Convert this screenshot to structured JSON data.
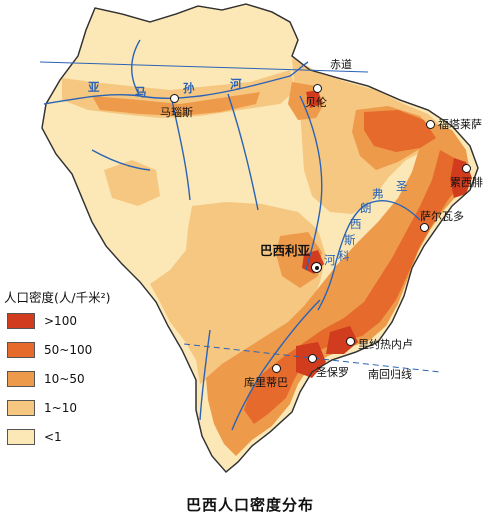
{
  "colors": {
    "gt100": "#d13c1e",
    "d50_100": "#e56a2c",
    "d10_50": "#ee9a4b",
    "d1_10": "#f6c780",
    "lt1": "#fbe8b6",
    "river": "#2a63b6",
    "line": "#2a63b6"
  },
  "legend": {
    "title": "人口密度(人/千米²)",
    "items": [
      {
        "label": ">100",
        "color": "#d13c1e"
      },
      {
        "label": "50~100",
        "color": "#e56a2c"
      },
      {
        "label": "10~50",
        "color": "#ee9a4b"
      },
      {
        "label": "1~10",
        "color": "#f6c780"
      },
      {
        "label": "<1",
        "color": "#fbe8b6"
      }
    ]
  },
  "lines": {
    "equator": "赤道",
    "tropic": "南回归线"
  },
  "rivers": {
    "amazon": [
      "亚",
      "马",
      "孙",
      "河"
    ],
    "sao_francisco": [
      "圣",
      "弗",
      "朗",
      "西",
      "斯",
      "科",
      "河"
    ]
  },
  "cities": {
    "manaus": "马瑙斯",
    "belem": "贝伦",
    "fortaleza": "福塔莱萨",
    "recife": "累西腓",
    "salvador": "萨尔瓦多",
    "brasilia": "巴西利亚",
    "rio": "里约热内卢",
    "sao_paulo": "圣保罗",
    "curitiba": "库里蒂巴"
  },
  "caption": "巴西人口密度分布"
}
